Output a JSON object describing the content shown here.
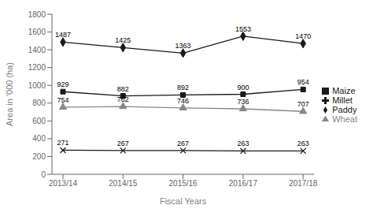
{
  "chart_data": {
    "type": "line",
    "categories": [
      "2013/14",
      "2014/15",
      "2015/16",
      "2016/17",
      "2017/18"
    ],
    "series": [
      {
        "name": "Paddy",
        "color": "#1a1a1a",
        "marker": "diamond",
        "values": [
          1487,
          1425,
          1363,
          1553,
          1470
        ]
      },
      {
        "name": "Maize",
        "color": "#1a1a1a",
        "marker": "square",
        "values": [
          929,
          882,
          892,
          900,
          954
        ]
      },
      {
        "name": "Wheat",
        "color": "#888888",
        "marker": "triangle",
        "values": [
          754,
          762,
          746,
          736,
          707
        ]
      },
      {
        "name": "Millet",
        "color": "#1a1a1a",
        "marker": "x",
        "values": [
          271,
          267,
          267,
          263,
          263
        ]
      }
    ],
    "xlabel": "Fiscal Years",
    "ylabel": "Area in '000 (ha)",
    "ylim": [
      0,
      1800
    ],
    "yticks": [
      0,
      200,
      400,
      600,
      800,
      1000,
      1200,
      1400,
      1600,
      1800
    ],
    "data_labels": true,
    "legend": "right",
    "grid": false
  }
}
